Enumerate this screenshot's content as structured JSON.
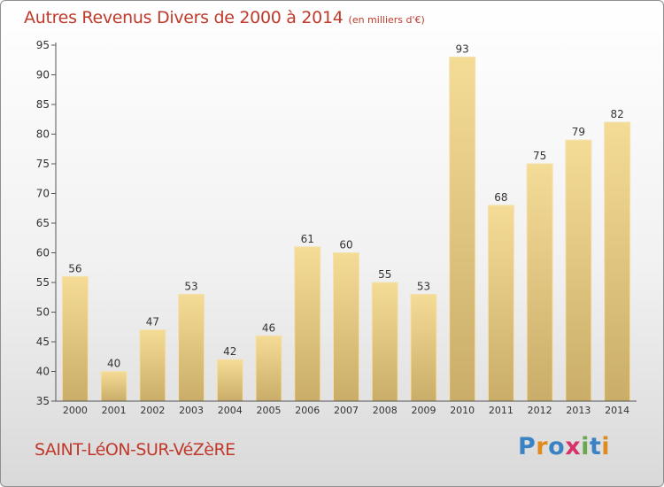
{
  "chart_data": {
    "type": "bar",
    "title": "Autres Revenus Divers de 2000 à 2014",
    "subtitle": "(en milliers d'€)",
    "categories": [
      "2000",
      "2001",
      "2002",
      "2003",
      "2004",
      "2005",
      "2006",
      "2007",
      "2008",
      "2009",
      "2010",
      "2011",
      "2012",
      "2013",
      "2014"
    ],
    "values": [
      56,
      40,
      47,
      53,
      42,
      46,
      61,
      60,
      55,
      53,
      93,
      68,
      75,
      79,
      82
    ],
    "ylim": [
      35,
      95
    ],
    "yticks": [
      35,
      40,
      45,
      50,
      55,
      60,
      65,
      70,
      75,
      80,
      85,
      90,
      95
    ],
    "xlabel": "",
    "ylabel": "",
    "grid": false,
    "bar_color": "#e9cd83"
  },
  "footer": {
    "commune": "SAINT-LéON-SUR-VéZèRE",
    "logo": "Proxiti"
  },
  "colors": {
    "title": "#c0392b",
    "axis": "#333333",
    "logo_letters": [
      "#3b82c4",
      "#e08a1e",
      "#3b82c4",
      "#d6336c",
      "#6aa84f",
      "#3b82c4",
      "#e08a1e"
    ]
  }
}
